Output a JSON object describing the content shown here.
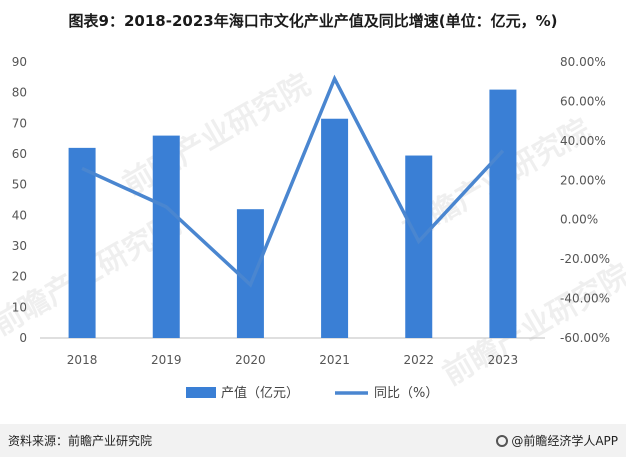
{
  "title": "图表9：2018-2023年海口市文化产业产值及同比增速(单位：亿元，%)",
  "chart_data": {
    "type": "bar+line",
    "categories": [
      "2018",
      "2019",
      "2020",
      "2021",
      "2022",
      "2023"
    ],
    "series": [
      {
        "name": "产值（亿元）",
        "type": "bar",
        "axis": "left",
        "values": [
          62,
          66,
          42,
          71.5,
          59.5,
          81
        ]
      },
      {
        "name": "同比（%）",
        "type": "line",
        "axis": "right",
        "values": [
          26,
          6.5,
          -33,
          71.5,
          -11,
          35
        ]
      }
    ],
    "y_left": {
      "min": 0,
      "max": 90,
      "step": 10,
      "ticks": [
        "0",
        "10",
        "20",
        "30",
        "40",
        "50",
        "60",
        "70",
        "80",
        "90"
      ]
    },
    "y_right": {
      "min": -60,
      "max": 80,
      "step": 20,
      "ticks": [
        "-60.00%",
        "-40.00%",
        "-20.00%",
        "0.00%",
        "20.00%",
        "40.00%",
        "60.00%",
        "80.00%"
      ]
    },
    "colors": {
      "bar": "#3a7fd5",
      "line": "#4a86d0",
      "axis": "#bfbfbf",
      "tick": "#555555"
    },
    "legend": {
      "position": "bottom"
    },
    "grid": false
  },
  "footer": {
    "source": "资料来源：前瞻产业研究院",
    "brand": "@前瞻经济学人APP",
    "brand_icon": "qianzhan-logo-icon"
  },
  "watermark": "前瞻产业研究院"
}
